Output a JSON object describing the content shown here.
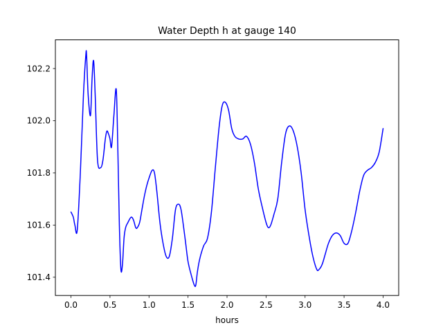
{
  "chart_data": {
    "type": "line",
    "title": "Water Depth h at gauge 140",
    "xlabel": "hours",
    "ylabel": "",
    "xlim": [
      -0.2,
      4.2
    ],
    "ylim": [
      101.33,
      102.31
    ],
    "xticks": [
      0.0,
      0.5,
      1.0,
      1.5,
      2.0,
      2.5,
      3.0,
      3.5,
      4.0
    ],
    "xtick_labels": [
      "0.0",
      "0.5",
      "1.0",
      "1.5",
      "2.0",
      "2.5",
      "3.0",
      "3.5",
      "4.0"
    ],
    "yticks": [
      101.4,
      101.6,
      101.8,
      102.0,
      102.2
    ],
    "ytick_labels": [
      "101.4",
      "101.6",
      "101.8",
      "102.0",
      "102.2"
    ],
    "grid": false,
    "series": [
      {
        "color": "#0000ff",
        "x": [
          0.0,
          0.03,
          0.05,
          0.08,
          0.12,
          0.16,
          0.19,
          0.2,
          0.22,
          0.25,
          0.27,
          0.29,
          0.31,
          0.34,
          0.38,
          0.41,
          0.44,
          0.46,
          0.48,
          0.5,
          0.52,
          0.55,
          0.58,
          0.6,
          0.62,
          0.64,
          0.66,
          0.68,
          0.7,
          0.73,
          0.77,
          0.8,
          0.83,
          0.85,
          0.88,
          0.91,
          0.94,
          0.97,
          1.0,
          1.04,
          1.07,
          1.1,
          1.14,
          1.18,
          1.22,
          1.26,
          1.3,
          1.34,
          1.38,
          1.41,
          1.44,
          1.47,
          1.5,
          1.54,
          1.58,
          1.6,
          1.62,
          1.65,
          1.7,
          1.75,
          1.8,
          1.85,
          1.9,
          1.94,
          1.98,
          2.02,
          2.06,
          2.1,
          2.15,
          2.2,
          2.25,
          2.3,
          2.35,
          2.4,
          2.45,
          2.5,
          2.53,
          2.56,
          2.6,
          2.65,
          2.7,
          2.75,
          2.8,
          2.85,
          2.9,
          2.95,
          3.0,
          3.05,
          3.1,
          3.15,
          3.18,
          3.22,
          3.26,
          3.3,
          3.35,
          3.4,
          3.45,
          3.5,
          3.55,
          3.6,
          3.65,
          3.7,
          3.75,
          3.8,
          3.85,
          3.9,
          3.95,
          4.0
        ],
        "values": [
          101.65,
          101.63,
          101.6,
          101.58,
          101.8,
          102.1,
          102.25,
          102.25,
          102.1,
          102.02,
          102.16,
          102.23,
          102.1,
          101.85,
          101.82,
          101.85,
          101.93,
          101.96,
          101.95,
          101.93,
          101.9,
          102.02,
          102.12,
          101.9,
          101.6,
          101.43,
          101.45,
          101.55,
          101.59,
          101.61,
          101.63,
          101.62,
          101.59,
          101.59,
          101.61,
          101.66,
          101.71,
          101.75,
          101.78,
          101.81,
          101.8,
          101.73,
          101.61,
          101.53,
          101.48,
          101.48,
          101.55,
          101.66,
          101.68,
          101.66,
          101.6,
          101.53,
          101.46,
          101.41,
          101.37,
          101.37,
          101.42,
          101.47,
          101.52,
          101.55,
          101.65,
          101.82,
          101.98,
          102.06,
          102.07,
          102.04,
          101.97,
          101.94,
          101.93,
          101.93,
          101.94,
          101.91,
          101.84,
          101.74,
          101.67,
          101.61,
          101.59,
          101.6,
          101.64,
          101.7,
          101.84,
          101.95,
          101.98,
          101.96,
          101.9,
          101.8,
          101.66,
          101.56,
          101.48,
          101.43,
          101.43,
          101.45,
          101.49,
          101.53,
          101.56,
          101.57,
          101.56,
          101.53,
          101.53,
          101.58,
          101.65,
          101.73,
          101.79,
          101.81,
          101.82,
          101.84,
          101.88,
          101.97
        ]
      }
    ]
  }
}
